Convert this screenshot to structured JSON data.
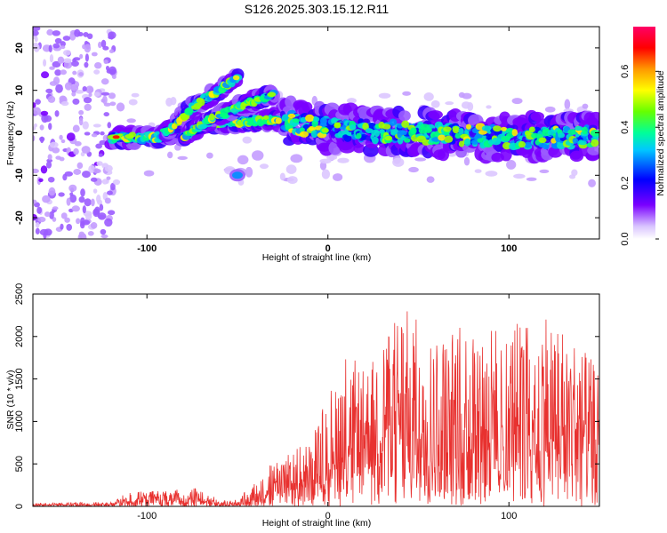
{
  "title": "S126.2025.303.15.12.R11",
  "chart_data": [
    {
      "type": "heatmap",
      "panel": "top",
      "xlabel": "Height of straight line (km)",
      "ylabel": "Frequency (Hz)",
      "xlim": [
        -163,
        150
      ],
      "ylim": [
        -25,
        25
      ],
      "xticks": [
        -100,
        0,
        100
      ],
      "yticks": [
        -20,
        -10,
        0,
        10,
        20
      ],
      "colorbar": {
        "label": "Normalized spectral amplitude",
        "range": [
          0,
          0.76
        ],
        "ticks": [
          0.0,
          0.2,
          0.4,
          0.6
        ],
        "tick_labels": [
          "0.0",
          "0.2",
          "0.4",
          "0.6"
        ]
      },
      "features": [
        {
          "name": "main band",
          "x": [
            -160,
            -90,
            -80,
            -30,
            0,
            50,
            100,
            148
          ],
          "freq": [
            -1.5,
            -1,
            2,
            3,
            1,
            0,
            -1,
            -1
          ]
        },
        {
          "name": "rising branch A",
          "x": [
            -90,
            -75,
            -60,
            -50
          ],
          "freq": [
            0,
            6,
            10,
            13
          ]
        },
        {
          "name": "rising branch B",
          "x": [
            -80,
            -65,
            -45,
            -30
          ],
          "freq": [
            -1,
            3,
            7,
            9
          ]
        },
        {
          "name": "isolated blob",
          "x": [
            -50
          ],
          "freq": [
            -10
          ]
        }
      ]
    },
    {
      "type": "line",
      "panel": "bottom",
      "xlabel": "Height of straight line (km)",
      "ylabel": "SNR (10 * v/v)",
      "xlim": [
        -163,
        150
      ],
      "ylim": [
        0,
        2500
      ],
      "xticks": [
        -100,
        0,
        100
      ],
      "yticks": [
        0,
        500,
        1000,
        1500,
        2000,
        2500
      ],
      "series": [
        {
          "name": "SNR",
          "color": "#e8312f",
          "envelope_x": [
            -163,
            -120,
            -110,
            -90,
            -70,
            -60,
            -50,
            -40,
            -30,
            -20,
            -10,
            0,
            10,
            20,
            40,
            60,
            80,
            100,
            120,
            140,
            150
          ],
          "envelope_y": [
            40,
            50,
            170,
            190,
            220,
            70,
            80,
            300,
            550,
            700,
            750,
            1350,
            1850,
            1600,
            2400,
            2000,
            2200,
            2100,
            2400,
            1900,
            1600
          ],
          "baseline_y": [
            10,
            10,
            20,
            30,
            40,
            10,
            10,
            50,
            100,
            150,
            200,
            300,
            350,
            350,
            400,
            400,
            400,
            400,
            400,
            350,
            300
          ]
        }
      ]
    }
  ]
}
